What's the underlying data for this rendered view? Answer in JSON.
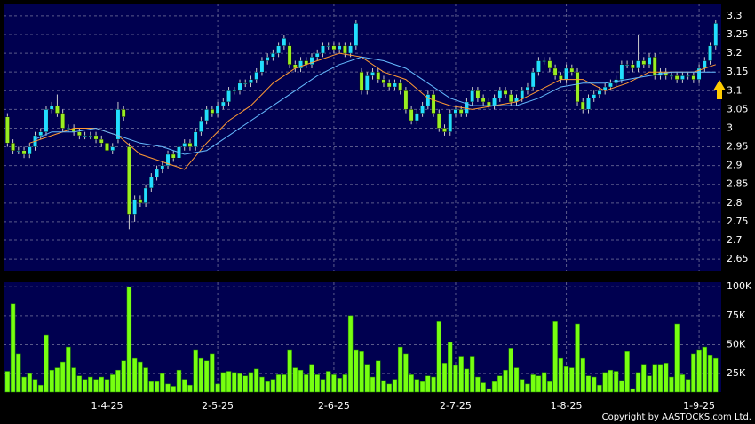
{
  "chart_data": [
    {
      "type": "candlestick",
      "open": [
        3.03,
        2.96,
        2.94,
        2.94,
        2.93,
        2.95,
        2.98,
        2.99,
        3.05,
        3.06,
        3.04,
        3.0,
        3.0,
        2.99,
        2.98,
        2.98,
        2.98,
        2.97,
        2.96,
        2.94,
        2.97,
        3.05,
        2.95,
        2.77,
        2.81,
        2.8,
        2.84,
        2.87,
        2.89,
        2.9,
        2.93,
        2.92,
        2.95,
        2.96,
        2.95,
        2.99,
        3.02,
        3.05,
        3.04,
        3.06,
        3.07,
        3.1,
        3.1,
        3.12,
        3.12,
        3.13,
        3.15,
        3.18,
        3.19,
        3.2,
        3.22,
        3.22,
        3.17,
        3.16,
        3.18,
        3.17,
        3.19,
        3.2,
        3.22,
        3.22,
        3.21,
        3.22,
        3.2,
        3.22,
        3.15,
        3.1,
        3.14,
        3.15,
        3.13,
        3.12,
        3.11,
        3.12,
        3.1,
        3.05,
        3.02,
        3.04,
        3.06,
        3.09,
        3.04,
        3.0,
        2.99,
        3.04,
        3.05,
        3.04,
        3.07,
        3.1,
        3.08,
        3.07,
        3.06,
        3.08,
        3.1,
        3.09,
        3.07,
        3.08,
        3.1,
        3.11,
        3.15,
        3.18,
        3.18,
        3.16,
        3.14,
        3.13,
        3.16,
        3.15,
        3.07,
        3.05,
        3.08,
        3.09,
        3.1,
        3.11,
        3.12,
        3.13,
        3.17,
        3.17,
        3.16,
        3.18,
        3.17,
        3.19,
        3.14,
        3.15,
        3.14,
        3.14,
        3.13,
        3.14,
        3.14,
        3.13,
        3.16,
        3.18,
        3.22
      ],
      "high": [
        3.04,
        2.97,
        2.95,
        2.95,
        2.96,
        2.99,
        3.0,
        3.06,
        3.07,
        3.09,
        3.05,
        3.01,
        3.01,
        3.0,
        2.99,
        2.99,
        2.99,
        2.98,
        2.97,
        2.96,
        3.07,
        3.06,
        2.96,
        2.82,
        2.82,
        2.85,
        2.88,
        2.9,
        2.91,
        2.94,
        2.94,
        2.96,
        2.97,
        2.97,
        3.0,
        3.03,
        3.06,
        3.06,
        3.07,
        3.08,
        3.11,
        3.11,
        3.13,
        3.13,
        3.14,
        3.16,
        3.19,
        3.2,
        3.21,
        3.23,
        3.25,
        3.23,
        3.18,
        3.19,
        3.19,
        3.2,
        3.21,
        3.23,
        3.23,
        3.23,
        3.23,
        3.23,
        3.23,
        3.29,
        3.16,
        3.15,
        3.16,
        3.16,
        3.14,
        3.13,
        3.13,
        3.13,
        3.11,
        3.06,
        3.05,
        3.07,
        3.1,
        3.1,
        3.05,
        3.01,
        3.05,
        3.06,
        3.06,
        3.08,
        3.11,
        3.11,
        3.09,
        3.08,
        3.09,
        3.11,
        3.11,
        3.1,
        3.09,
        3.11,
        3.12,
        3.16,
        3.19,
        3.19,
        3.19,
        3.17,
        3.15,
        3.17,
        3.17,
        3.16,
        3.08,
        3.09,
        3.1,
        3.11,
        3.12,
        3.13,
        3.14,
        3.18,
        3.18,
        3.18,
        3.25,
        3.19,
        3.2,
        3.2,
        3.16,
        3.16,
        3.15,
        3.15,
        3.15,
        3.15,
        3.15,
        3.17,
        3.19,
        3.23,
        3.29
      ],
      "low": [
        2.95,
        2.93,
        2.93,
        2.92,
        2.92,
        2.94,
        2.97,
        2.98,
        3.04,
        3.03,
        2.99,
        2.99,
        2.98,
        2.97,
        2.97,
        2.97,
        2.96,
        2.95,
        2.93,
        2.93,
        2.96,
        3.02,
        2.73,
        2.75,
        2.79,
        2.79,
        2.83,
        2.86,
        2.88,
        2.89,
        2.91,
        2.91,
        2.94,
        2.94,
        2.94,
        2.98,
        3.01,
        3.03,
        3.03,
        3.05,
        3.06,
        3.09,
        3.09,
        3.11,
        3.11,
        3.12,
        3.14,
        3.17,
        3.18,
        3.19,
        3.21,
        3.16,
        3.15,
        3.15,
        3.16,
        3.16,
        3.18,
        3.19,
        3.21,
        3.2,
        3.2,
        3.19,
        3.19,
        3.21,
        3.09,
        3.09,
        3.13,
        3.12,
        3.11,
        3.1,
        3.1,
        3.09,
        3.04,
        3.01,
        3.01,
        3.03,
        3.05,
        3.03,
        2.99,
        2.98,
        2.98,
        3.03,
        3.03,
        3.03,
        3.06,
        3.07,
        3.06,
        3.05,
        3.05,
        3.07,
        3.08,
        3.06,
        3.06,
        3.07,
        3.09,
        3.1,
        3.14,
        3.17,
        3.15,
        3.13,
        3.12,
        3.12,
        3.14,
        3.06,
        3.04,
        3.04,
        3.07,
        3.08,
        3.09,
        3.1,
        3.11,
        3.12,
        3.16,
        3.15,
        3.15,
        3.16,
        3.16,
        3.13,
        3.13,
        3.13,
        3.13,
        3.12,
        3.12,
        3.13,
        3.12,
        3.12,
        3.15,
        3.17,
        3.21
      ],
      "close": [
        2.96,
        2.94,
        2.94,
        2.93,
        2.95,
        2.98,
        2.99,
        3.05,
        3.06,
        3.04,
        3.0,
        3.0,
        2.99,
        2.98,
        2.98,
        2.98,
        2.97,
        2.96,
        2.94,
        2.95,
        3.05,
        3.03,
        2.77,
        2.81,
        2.8,
        2.84,
        2.87,
        2.89,
        2.9,
        2.93,
        2.92,
        2.95,
        2.96,
        2.95,
        2.99,
        3.02,
        3.05,
        3.04,
        3.06,
        3.07,
        3.1,
        3.1,
        3.12,
        3.12,
        3.13,
        3.15,
        3.18,
        3.19,
        3.2,
        3.22,
        3.24,
        3.17,
        3.16,
        3.18,
        3.17,
        3.19,
        3.2,
        3.22,
        3.22,
        3.21,
        3.22,
        3.2,
        3.22,
        3.28,
        3.1,
        3.14,
        3.15,
        3.13,
        3.12,
        3.11,
        3.12,
        3.1,
        3.05,
        3.02,
        3.04,
        3.06,
        3.09,
        3.04,
        3.0,
        2.99,
        3.04,
        3.05,
        3.04,
        3.07,
        3.1,
        3.08,
        3.07,
        3.06,
        3.08,
        3.1,
        3.09,
        3.07,
        3.08,
        3.1,
        3.11,
        3.15,
        3.18,
        3.18,
        3.16,
        3.14,
        3.13,
        3.16,
        3.15,
        3.07,
        3.05,
        3.08,
        3.09,
        3.1,
        3.11,
        3.12,
        3.13,
        3.17,
        3.17,
        3.16,
        3.18,
        3.17,
        3.19,
        3.14,
        3.15,
        3.14,
        3.14,
        3.13,
        3.14,
        3.14,
        3.13,
        3.16,
        3.18,
        3.22,
        3.28
      ],
      "up_color": "#22ddff",
      "down_color": "#99ee22",
      "lines": [
        {
          "color": "#ff9933",
          "x": [
            4,
            8,
            12,
            16,
            20,
            24,
            28,
            32,
            36,
            40,
            44,
            48,
            52,
            56,
            60,
            64,
            68,
            72,
            76,
            80,
            84,
            88,
            92,
            96,
            100,
            104,
            108,
            112,
            116,
            120,
            124,
            128
          ],
          "values": [
            2.96,
            2.98,
            3.0,
            3.0,
            2.98,
            2.93,
            2.91,
            2.89,
            2.96,
            3.02,
            3.06,
            3.12,
            3.16,
            3.18,
            3.2,
            3.19,
            3.15,
            3.13,
            3.08,
            3.06,
            3.05,
            3.06,
            3.07,
            3.1,
            3.13,
            3.13,
            3.1,
            3.12,
            3.15,
            3.15,
            3.15,
            3.17
          ]
        },
        {
          "color": "#66bbff",
          "x": [
            5,
            8,
            12,
            16,
            20,
            24,
            28,
            32,
            36,
            40,
            44,
            48,
            52,
            56,
            60,
            64,
            68,
            72,
            76,
            80,
            84,
            88,
            92,
            96,
            100,
            104,
            108,
            112,
            116,
            120,
            124,
            128
          ],
          "values": [
            2.97,
            2.99,
            2.99,
            3.0,
            2.98,
            2.96,
            2.95,
            2.93,
            2.94,
            2.98,
            3.02,
            3.06,
            3.1,
            3.14,
            3.17,
            3.19,
            3.18,
            3.16,
            3.12,
            3.08,
            3.06,
            3.06,
            3.06,
            3.08,
            3.11,
            3.12,
            3.12,
            3.13,
            3.14,
            3.15,
            3.15,
            3.15
          ]
        }
      ],
      "xlim": [
        -0.7,
        129
      ],
      "ylim": [
        2.617,
        3.333
      ],
      "yticks": [
        2.65,
        2.7,
        2.75,
        2.8,
        2.85,
        2.9,
        2.95,
        3,
        3.05,
        3.1,
        3.15,
        3.2,
        3.25,
        3.3
      ],
      "grid": true
    },
    {
      "type": "bar",
      "values": [
        27000,
        85000,
        42000,
        22000,
        25000,
        20000,
        15000,
        58000,
        28000,
        30000,
        35000,
        48000,
        30000,
        23000,
        20000,
        22000,
        20000,
        22000,
        20000,
        24000,
        28000,
        36000,
        100000,
        38000,
        35000,
        30000,
        18000,
        18000,
        25000,
        16000,
        14000,
        28000,
        20000,
        15000,
        45000,
        38000,
        36000,
        42000,
        16000,
        26000,
        27000,
        26000,
        25000,
        23000,
        26000,
        29000,
        22000,
        18000,
        20000,
        24000,
        24000,
        45000,
        30000,
        28000,
        24000,
        33000,
        24000,
        20000,
        27000,
        24000,
        21000,
        24000,
        75000,
        45000,
        44000,
        33000,
        22000,
        36000,
        19000,
        16000,
        20000,
        48000,
        42000,
        24000,
        20000,
        18000,
        23000,
        22000,
        70000,
        34000,
        52000,
        32000,
        40000,
        29000,
        40000,
        22000,
        17000,
        12000,
        18000,
        23000,
        28000,
        47000,
        30000,
        20000,
        16000,
        24000,
        23000,
        26000,
        18000,
        70000,
        38000,
        31000,
        30000,
        68000,
        38000,
        23000,
        22000,
        15000,
        26000,
        28000,
        27000,
        19000,
        44000,
        12000,
        26000,
        33000,
        23000,
        33000,
        33000,
        34000,
        22000,
        68000,
        24000,
        20000,
        42000,
        45000,
        48000,
        41000,
        38000
      ],
      "color": "#77ff11",
      "xlim": [
        -0.7,
        129
      ],
      "xticks": [
        {
          "value": 18,
          "label": "1-4-25"
        },
        {
          "value": 38,
          "label": "2-5-25"
        },
        {
          "value": 59,
          "label": "2-6-25"
        },
        {
          "value": 81,
          "label": "2-7-25"
        },
        {
          "value": 101,
          "label": "1-8-25"
        },
        {
          "value": 125,
          "label": "1-9-25"
        }
      ],
      "ylim": [
        9000,
        104000
      ],
      "yticks": [
        {
          "value": 25000,
          "label": "25K"
        },
        {
          "value": 50000,
          "label": "50K"
        },
        {
          "value": 75000,
          "label": "75K"
        },
        {
          "value": 100000,
          "label": "100K"
        }
      ],
      "grid": true
    }
  ],
  "footer": "Copyright by AASTOCKS.com Ltd."
}
